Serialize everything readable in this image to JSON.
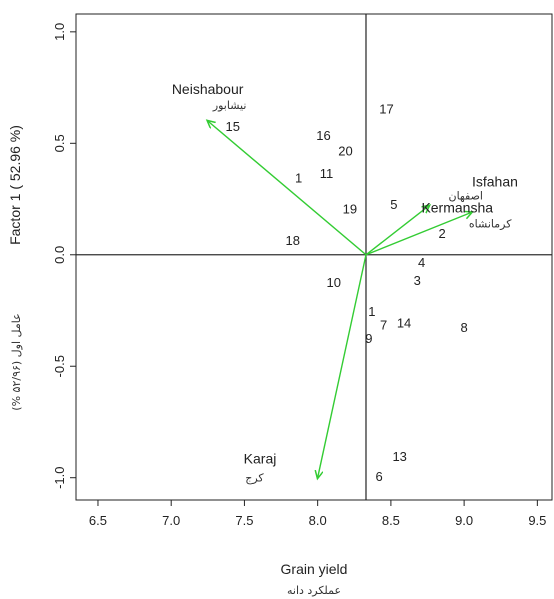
{
  "chart_data": {
    "type": "scatter",
    "xlabel": "Grain yield",
    "xlabel_alt": "عملکرد دانه",
    "ylabel": "Factor 1 ( 52.96 %)",
    "ylabel_alt": "عامل اول (۵۲/۹۶ %)",
    "xlim": [
      6.35,
      9.6
    ],
    "ylim": [
      -1.1,
      1.08
    ],
    "xticks": [
      "6.5",
      "7.0",
      "7.5",
      "8.0",
      "8.5",
      "9.0",
      "9.5"
    ],
    "xtick_values": [
      6.5,
      7.0,
      7.5,
      8.0,
      8.5,
      9.0,
      9.5
    ],
    "yticks": [
      "-1.0",
      "-0.5",
      "0.0",
      "0.5",
      "1.0"
    ],
    "ytick_values": [
      -1.0,
      -0.5,
      0.0,
      0.5,
      1.0
    ],
    "reference_lines": {
      "x": 8.33,
      "y": 0.0
    },
    "arrow_color": "#33cc33",
    "genotypes": [
      {
        "label": "1",
        "x": 7.87,
        "y": 0.34
      },
      {
        "label": "1",
        "x": 8.37,
        "y": -0.26
      },
      {
        "label": "2",
        "x": 8.85,
        "y": 0.09
      },
      {
        "label": "3",
        "x": 8.68,
        "y": -0.12
      },
      {
        "label": "4",
        "x": 8.71,
        "y": -0.04
      },
      {
        "label": "5",
        "x": 8.52,
        "y": 0.22
      },
      {
        "label": "6",
        "x": 8.42,
        "y": -1.0
      },
      {
        "label": "7",
        "x": 8.45,
        "y": -0.32
      },
      {
        "label": "8",
        "x": 9.0,
        "y": -0.33
      },
      {
        "label": "9",
        "x": 8.35,
        "y": -0.38
      },
      {
        "label": "10",
        "x": 8.11,
        "y": -0.13
      },
      {
        "label": "11",
        "x": 8.06,
        "y": 0.36
      },
      {
        "label": "13",
        "x": 8.56,
        "y": -0.91
      },
      {
        "label": "14",
        "x": 8.59,
        "y": -0.31
      },
      {
        "label": "15",
        "x": 7.42,
        "y": 0.57
      },
      {
        "label": "16",
        "x": 8.04,
        "y": 0.53
      },
      {
        "label": "17",
        "x": 8.47,
        "y": 0.65
      },
      {
        "label": "18",
        "x": 7.83,
        "y": 0.06
      },
      {
        "label": "19",
        "x": 8.22,
        "y": 0.2
      },
      {
        "label": "20",
        "x": 8.19,
        "y": 0.46
      }
    ],
    "environments": [
      {
        "name": "Neishabour",
        "name_alt": "نیشابور",
        "x": 7.25,
        "y": 0.6
      },
      {
        "name": "Isfahan",
        "name_alt": "اصفهان",
        "x": 8.76,
        "y": 0.22
      },
      {
        "name": "Kermansha",
        "name_alt": "کرمانشاه",
        "x": 9.05,
        "y": 0.19
      },
      {
        "name": "Karaj",
        "name_alt": "کرج",
        "x": 8.0,
        "y": -1.0
      }
    ]
  }
}
